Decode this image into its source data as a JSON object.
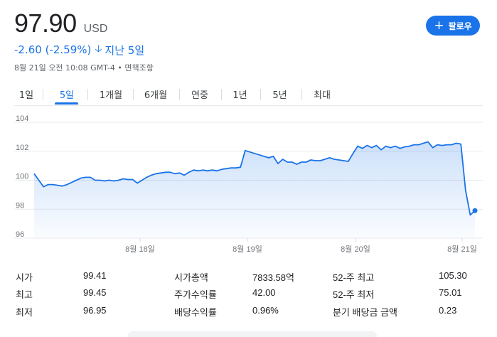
{
  "quote": {
    "price": "97.90",
    "currency": "USD",
    "change": "-2.60 (-2.59%)",
    "period": "지난 5일",
    "timestamp": "8월 21일 오전 10:08 GMT-4 • 면책조항"
  },
  "follow_button": {
    "label": "팔로우",
    "icon": "plus-icon",
    "color": "#1a73e8"
  },
  "tabs": [
    {
      "label": "1일",
      "active": false
    },
    {
      "label": "5일",
      "active": true
    },
    {
      "label": "1개월",
      "active": false
    },
    {
      "label": "6개월",
      "active": false
    },
    {
      "label": "연중",
      "active": false
    },
    {
      "label": "1년",
      "active": false
    },
    {
      "label": "5년",
      "active": false
    },
    {
      "label": "최대",
      "active": false
    }
  ],
  "chart_data": {
    "type": "area",
    "ylim": [
      96,
      104
    ],
    "yticks": [
      "104",
      "102",
      "100",
      "98",
      "96"
    ],
    "xticks": [
      "8월 18일",
      "8월 19일",
      "8월 20일",
      "8월 21일"
    ],
    "line_color": "#1a73e8",
    "grid": true,
    "series": [
      {
        "values": [
          100.45,
          100.0,
          99.55,
          99.7,
          99.7,
          99.65,
          99.6,
          99.7,
          99.85,
          100.0,
          100.15,
          100.2,
          100.2,
          100.0,
          100.0,
          99.95,
          100.0,
          99.95,
          100.0,
          100.1,
          100.05,
          100.05,
          99.8,
          100.0,
          100.2,
          100.35,
          100.45,
          100.5,
          100.55,
          100.55,
          100.45,
          100.5,
          100.35,
          100.55,
          100.7,
          100.65,
          100.7,
          100.65,
          100.7,
          100.65,
          100.75,
          100.8,
          100.85,
          100.85,
          100.9,
          102.05,
          101.95,
          101.85,
          101.75,
          101.65,
          101.55,
          101.65,
          101.15,
          101.45,
          101.25,
          101.25,
          101.1,
          101.25,
          101.25,
          101.4,
          101.35,
          101.35,
          101.45,
          101.55,
          101.45,
          101.4,
          101.35,
          101.3,
          101.85,
          102.35,
          102.2,
          102.4,
          102.25,
          102.4,
          102.1,
          102.35,
          102.25,
          102.35,
          102.2,
          102.3,
          102.35,
          102.45,
          102.45,
          102.55,
          102.65,
          102.25,
          102.45,
          102.4,
          102.45,
          102.45,
          102.55,
          102.5,
          99.3,
          97.6,
          97.9
        ]
      }
    ]
  },
  "stats": [
    {
      "label": "시가",
      "value": "99.41"
    },
    {
      "label": "최고",
      "value": "99.45"
    },
    {
      "label": "최저",
      "value": "96.95"
    },
    {
      "label": "시가총액",
      "value": "7833.58억"
    },
    {
      "label": "주가수익률",
      "value": "42.00"
    },
    {
      "label": "배당수익률",
      "value": "0.96%"
    },
    {
      "label": "52-주 최고",
      "value": "105.30"
    },
    {
      "label": "52-주 최저",
      "value": "75.01"
    },
    {
      "label": "분기 배당금 금액",
      "value": "0.23"
    }
  ]
}
